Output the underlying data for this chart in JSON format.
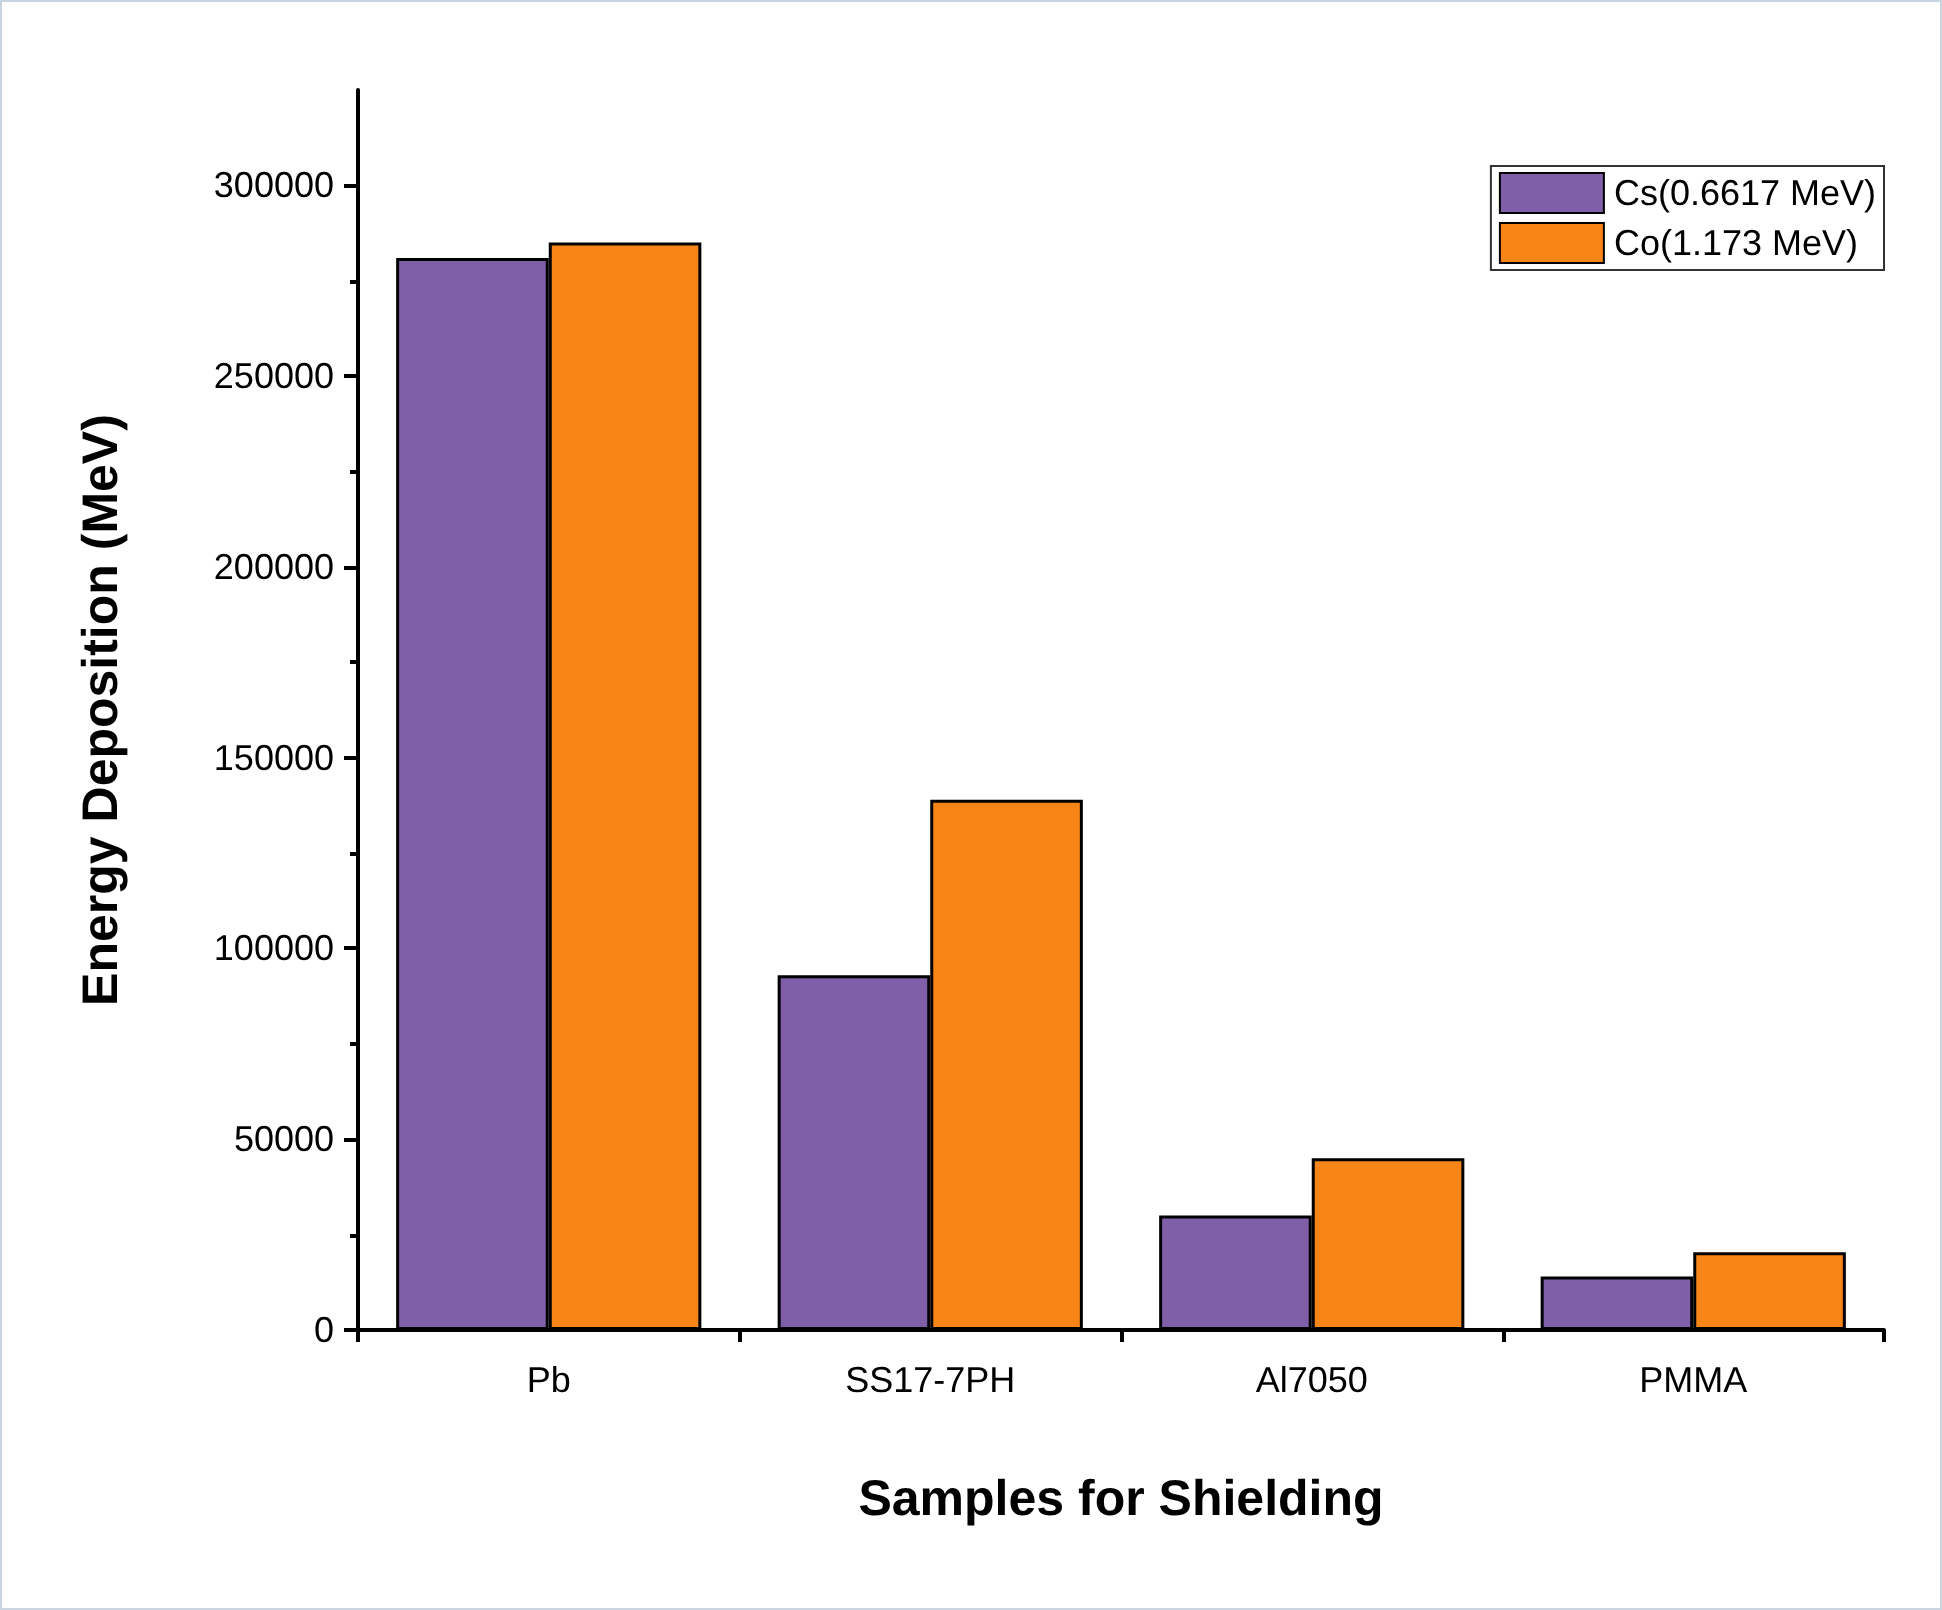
{
  "chart_data": {
    "type": "bar",
    "xlabel": "Samples for Shielding",
    "ylabel": "Energy Deposition (MeV)",
    "categories": [
      "Pb",
      "SS17-7PH",
      "Al7050",
      "PMMA"
    ],
    "series": [
      {
        "name": "Cs(0.6617 MeV)",
        "color": "#7f5fa8",
        "values": [
          281000,
          93000,
          30000,
          14000
        ]
      },
      {
        "name": "Co(1.173 MeV)",
        "color": "#f88517",
        "values": [
          285000,
          139000,
          45000,
          20400
        ]
      }
    ],
    "ylim": [
      0,
      325000
    ],
    "yticks": [
      0,
      50000,
      100000,
      150000,
      200000,
      250000,
      300000
    ],
    "grid": false,
    "legend": "top right"
  }
}
